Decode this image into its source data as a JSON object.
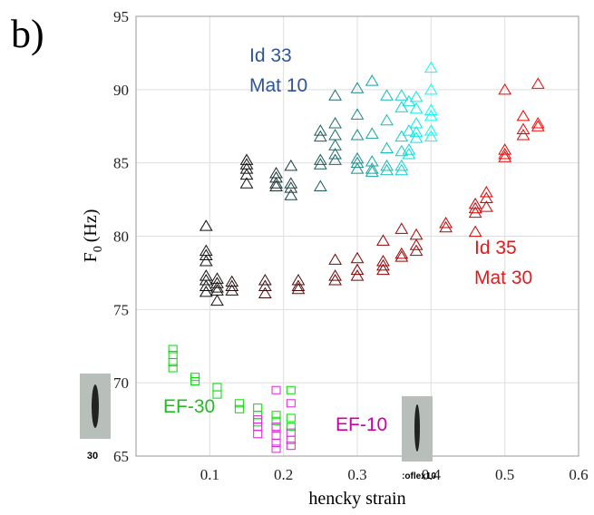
{
  "chart_data": {
    "type": "scatter",
    "panel_label": "b)",
    "xlabel": "hencky strain",
    "ylabel": {
      "main": "F",
      "sub": "0",
      "unit": "(Hz)"
    },
    "xlim": [
      0,
      0.6
    ],
    "ylim": [
      65,
      95
    ],
    "xticks": [
      0.1,
      0.2,
      0.3,
      0.4,
      0.5,
      0.6
    ],
    "yticks": [
      65,
      70,
      75,
      80,
      85,
      90,
      95
    ],
    "grid": true,
    "series": [
      {
        "name": [
          "Id 33",
          "Mat 10"
        ],
        "marker": "triangle",
        "colors": [
          "#111111",
          "#1f6f6f",
          "#00ffff"
        ],
        "x": [
          0.15,
          0.15,
          0.15,
          0.15,
          0.15,
          0.19,
          0.19,
          0.19,
          0.19,
          0.21,
          0.21,
          0.21,
          0.21,
          0.25,
          0.25,
          0.25,
          0.25,
          0.25,
          0.27,
          0.27,
          0.27,
          0.27,
          0.27,
          0.27,
          0.3,
          0.3,
          0.3,
          0.3,
          0.3,
          0.3,
          0.32,
          0.32,
          0.32,
          0.32,
          0.32,
          0.34,
          0.34,
          0.34,
          0.34,
          0.34,
          0.36,
          0.36,
          0.36,
          0.36,
          0.36,
          0.36,
          0.37,
          0.37,
          0.37,
          0.37,
          0.38,
          0.38,
          0.38,
          0.38,
          0.38,
          0.4,
          0.4,
          0.4,
          0.4,
          0.4,
          0.4
        ],
        "y": [
          85.2,
          84.9,
          84.6,
          84.2,
          83.6,
          84.3,
          84,
          83.6,
          83.4,
          83.6,
          83.3,
          84.8,
          82.8,
          87.2,
          86.8,
          85.2,
          84.9,
          83.4,
          89.6,
          87.7,
          86.9,
          86.2,
          85.6,
          85.2,
          90.1,
          88.3,
          86.9,
          85.3,
          85,
          84.6,
          90.6,
          87,
          85.1,
          84.6,
          84.4,
          89.6,
          87.9,
          86,
          84.8,
          84.5,
          89.6,
          88.8,
          86.8,
          85.8,
          84.8,
          84.5,
          89.2,
          87.2,
          85.9,
          85.6,
          89.5,
          88.7,
          87.7,
          87.1,
          86.7,
          91.5,
          90,
          88.6,
          88.2,
          87.2,
          86.8
        ],
        "label_color": "#2f5597"
      },
      {
        "name": [
          "Id 35",
          "Mat 30"
        ],
        "marker": "triangle",
        "colors": [
          "#111111",
          "#8b0000",
          "#ff0000"
        ],
        "x": [
          0.095,
          0.095,
          0.095,
          0.095,
          0.095,
          0.095,
          0.095,
          0.095,
          0.11,
          0.11,
          0.11,
          0.11,
          0.11,
          0.13,
          0.13,
          0.13,
          0.175,
          0.175,
          0.175,
          0.22,
          0.22,
          0.22,
          0.27,
          0.27,
          0.27,
          0.3,
          0.3,
          0.3,
          0.335,
          0.335,
          0.335,
          0.335,
          0.36,
          0.36,
          0.36,
          0.38,
          0.38,
          0.38,
          0.42,
          0.42,
          0.46,
          0.46,
          0.46,
          0.46,
          0.475,
          0.475,
          0.475,
          0.5,
          0.5,
          0.5,
          0.5,
          0.525,
          0.525,
          0.525,
          0.545,
          0.545,
          0.545
        ],
        "y": [
          80.7,
          79,
          78.7,
          78.3,
          77.3,
          77,
          76.6,
          76.2,
          77.1,
          76.8,
          76.5,
          76.3,
          75.6,
          76.9,
          76.6,
          76.3,
          77,
          76.6,
          76.1,
          77,
          76.6,
          76.4,
          78.4,
          77.3,
          77,
          78.5,
          77.7,
          77.3,
          79.7,
          78.3,
          78,
          77.7,
          80.5,
          78.8,
          78.6,
          80.1,
          79.4,
          79,
          80.9,
          80.6,
          82.2,
          81.9,
          81.6,
          80.3,
          83,
          82.6,
          82,
          90,
          85.9,
          85.6,
          85.4,
          88.2,
          87.3,
          86.9,
          90.4,
          87.7,
          87.5
        ],
        "label_color": "#e31a1c"
      },
      {
        "name": [
          "EF-30"
        ],
        "marker": "square",
        "colors": [
          "#00dd00"
        ],
        "x": [
          0.05,
          0.05,
          0.05,
          0.05,
          0.08,
          0.08,
          0.11,
          0.11,
          0.14,
          0.14,
          0.165,
          0.165,
          0.165,
          0.19,
          0.19,
          0.19,
          0.21,
          0.21,
          0.21
        ],
        "y": [
          72.3,
          71.9,
          71.4,
          71,
          70.4,
          70.1,
          69.7,
          69.2,
          68.6,
          68.2,
          68.3,
          67.8,
          67.3,
          67.8,
          67.4,
          66.9,
          67.6,
          67,
          69.5
        ],
        "label_color": "#22bb22"
      },
      {
        "name": [
          "EF-10"
        ],
        "marker": "square",
        "colors": [
          "#dd22dd"
        ],
        "x": [
          0.165,
          0.165,
          0.165,
          0.19,
          0.19,
          0.19,
          0.19,
          0.19,
          0.21,
          0.21,
          0.21,
          0.21
        ],
        "y": [
          67.5,
          67,
          66.5,
          69.5,
          67,
          66.4,
          65.9,
          65.5,
          68.6,
          66.6,
          66.1,
          65.7
        ],
        "label_color": "#cc00aa"
      }
    ],
    "thumbnails": [
      {
        "caption": "30"
      },
      {
        "caption": ":oflex10"
      }
    ]
  }
}
